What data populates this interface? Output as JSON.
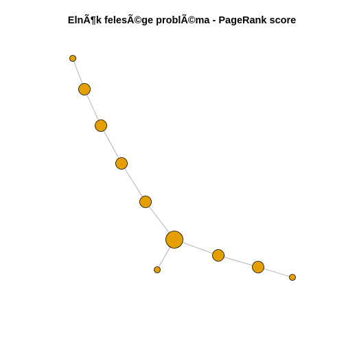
{
  "title": "ElnÃ¶k felesÃ©ge problÃ©ma - PageRank score",
  "colors": {
    "node_fill": "#E69F00",
    "node_stroke": "#000000",
    "edge": "#a0a0a0"
  },
  "graph": {
    "nodes": [
      {
        "id": "n1",
        "size": "small"
      },
      {
        "id": "n2",
        "size": "medium"
      },
      {
        "id": "n3",
        "size": "medium"
      },
      {
        "id": "n4",
        "size": "medium"
      },
      {
        "id": "n5",
        "size": "medium"
      },
      {
        "id": "n6",
        "size": "large"
      },
      {
        "id": "n7",
        "size": "small"
      },
      {
        "id": "n8",
        "size": "medium"
      },
      {
        "id": "n9",
        "size": "medium"
      },
      {
        "id": "n10",
        "size": "small"
      }
    ],
    "edges": [
      [
        "n1",
        "n2"
      ],
      [
        "n2",
        "n3"
      ],
      [
        "n3",
        "n4"
      ],
      [
        "n4",
        "n5"
      ],
      [
        "n5",
        "n6"
      ],
      [
        "n6",
        "n7"
      ],
      [
        "n6",
        "n8"
      ],
      [
        "n8",
        "n9"
      ],
      [
        "n9",
        "n10"
      ]
    ]
  }
}
